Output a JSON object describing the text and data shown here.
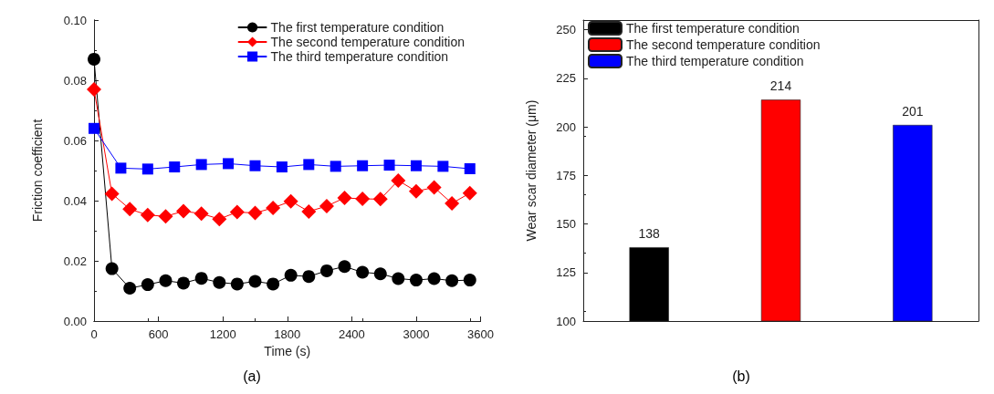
{
  "chart_data": [
    {
      "type": "line",
      "xlabel": "Time (s)",
      "ylabel": "Friction coefficient",
      "annotations": [
        "(a)"
      ],
      "xlim": [
        0,
        3600
      ],
      "xticks": [
        0,
        600,
        1200,
        1800,
        2400,
        3000,
        3600
      ],
      "ylim": [
        0,
        0.1
      ],
      "yticks": [
        {
          "value": 0,
          "label": "0.00"
        },
        {
          "value": 0.02,
          "label": "0.02"
        },
        {
          "value": 0.04,
          "label": "0.04"
        },
        {
          "value": 0.06,
          "label": "0.06"
        },
        {
          "value": 0.08,
          "label": "0.08"
        },
        {
          "value": 0.1,
          "label": "0.10"
        }
      ],
      "grid": false,
      "legend": "top right",
      "series": [
        {
          "name": "The first temperature condition",
          "color": "#000000",
          "marker": "circle",
          "x": [
            0,
            167,
            333,
            500,
            667,
            833,
            1000,
            1167,
            1333,
            1500,
            1667,
            1833,
            2000,
            2167,
            2333,
            2500,
            2667,
            2833,
            3000,
            3167,
            3333,
            3500
          ],
          "values": [
            0.087,
            0.0174,
            0.0109,
            0.0121,
            0.0134,
            0.0126,
            0.0142,
            0.0128,
            0.0123,
            0.0132,
            0.0123,
            0.0152,
            0.0148,
            0.0167,
            0.0181,
            0.0162,
            0.0157,
            0.0141,
            0.0136,
            0.0141,
            0.0134,
            0.0136
          ]
        },
        {
          "name": "The second temperature condition",
          "color": "#ff0000",
          "marker": "diamond",
          "x": [
            0,
            167,
            333,
            500,
            667,
            833,
            1000,
            1167,
            1333,
            1500,
            1667,
            1833,
            2000,
            2167,
            2333,
            2500,
            2667,
            2833,
            3000,
            3167,
            3333,
            3500
          ],
          "values": [
            0.077,
            0.0423,
            0.0372,
            0.0352,
            0.0348,
            0.0365,
            0.0357,
            0.0339,
            0.0362,
            0.0359,
            0.0376,
            0.0398,
            0.0364,
            0.0382,
            0.0409,
            0.0406,
            0.0405,
            0.0467,
            0.0431,
            0.0444,
            0.0391,
            0.0425
          ]
        },
        {
          "name": "The third temperature condition",
          "color": "#0000ff",
          "marker": "square",
          "x": [
            0,
            250,
            500,
            750,
            1000,
            1250,
            1500,
            1750,
            2000,
            2250,
            2500,
            2750,
            3000,
            3250,
            3500
          ],
          "values": [
            0.064,
            0.0508,
            0.0505,
            0.0512,
            0.052,
            0.0523,
            0.0516,
            0.0512,
            0.052,
            0.0514,
            0.0516,
            0.0518,
            0.0516,
            0.0514,
            0.0506
          ]
        }
      ]
    },
    {
      "type": "bar",
      "ylabel": "Wear scar diameter (μm)",
      "annotations": [
        "(b)"
      ],
      "categories": [
        null,
        null,
        null
      ],
      "ylim": [
        100,
        255
      ],
      "yticks": [
        100,
        125,
        150,
        175,
        200,
        225,
        250
      ],
      "grid": false,
      "legend": "top left",
      "data_labels": true,
      "series": [
        {
          "name": "The first temperature condition",
          "color": "#000000",
          "values": [
            138,
            null,
            null
          ]
        },
        {
          "name": "The second temperature condition",
          "color": "#ff0000",
          "values": [
            null,
            214,
            null
          ]
        },
        {
          "name": "The third temperature condition",
          "color": "#0000ff",
          "values": [
            null,
            null,
            201
          ]
        }
      ]
    }
  ]
}
